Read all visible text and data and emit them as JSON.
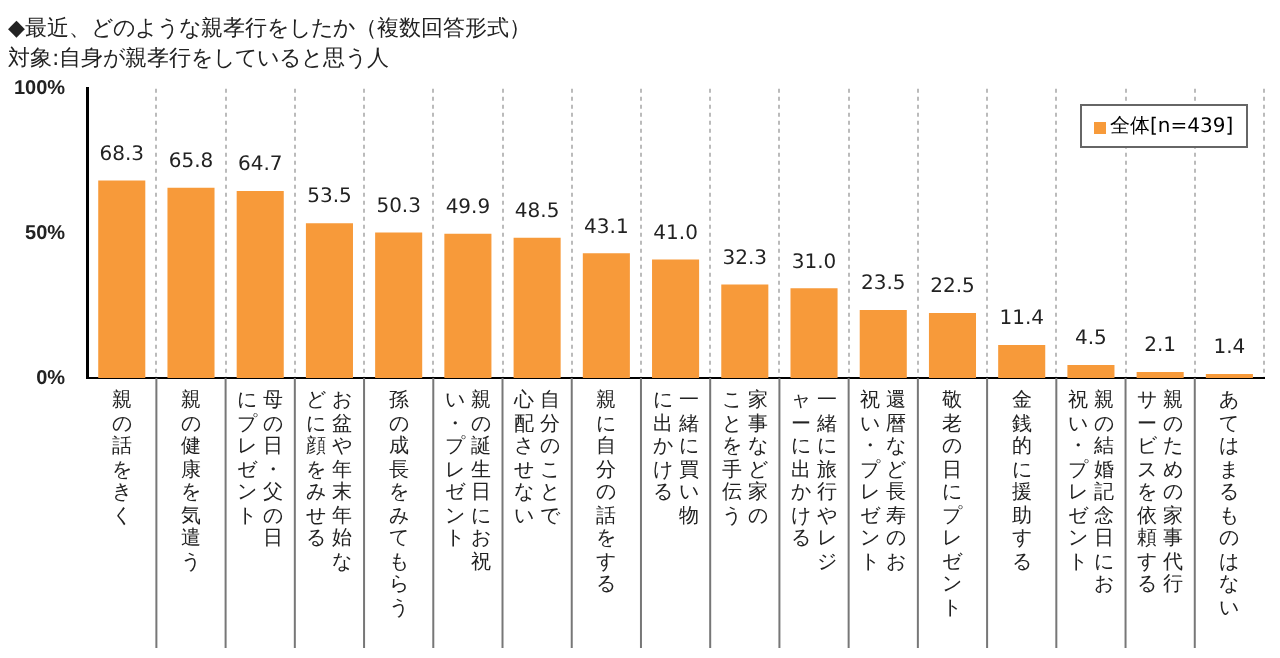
{
  "chart_data": {
    "type": "bar",
    "title": "◆最近、どのような親孝行をしたか（複数回答形式）",
    "subtitle": "対象:自身が親孝行をしていると思う人",
    "categories": [
      "親の話をきく",
      "親の健康を気遣う",
      "母の日・父の日にプレゼント",
      "お盆や年末年始などに顔をみせる",
      "孫の成長をみてもらう",
      "親の誕生日にお祝い・プレゼント",
      "自分のことで心配させない",
      "親に自分の話をする",
      "一緒に買い物に出かける",
      "家事など家のことを手伝う",
      "一緒に旅行やレジャーに出かける",
      "還暦など長寿のお祝い・プレゼント",
      "敬老の日にプレゼント",
      "金銭的に援助する",
      "親の結婚記念日にお祝い・プレゼント",
      "親のための家事代行サービスを依頼する",
      "あてはまるものはない"
    ],
    "series": [
      {
        "name": "全体[n=439]",
        "color": "#f79a3a",
        "values": [
          68.3,
          65.8,
          64.7,
          53.5,
          50.3,
          49.9,
          48.5,
          43.1,
          41.0,
          32.3,
          31.0,
          23.5,
          22.5,
          11.4,
          4.5,
          2.1,
          1.4
        ],
        "value_labels": [
          "68.3",
          "65.8",
          "64.7",
          "53.5",
          "50.3",
          "49.9",
          "48.5",
          "43.1",
          "41.0",
          "32.3",
          "31.0",
          "23.5",
          "22.5",
          "11.4",
          "4.5",
          "2.1",
          "1.4"
        ]
      }
    ],
    "ylim": [
      0,
      100
    ],
    "yticks": [
      {
        "value": 0,
        "label": "0%"
      },
      {
        "value": 50,
        "label": "50%"
      },
      {
        "value": 100,
        "label": "100%"
      }
    ],
    "grid": "x",
    "legend": "top right"
  }
}
